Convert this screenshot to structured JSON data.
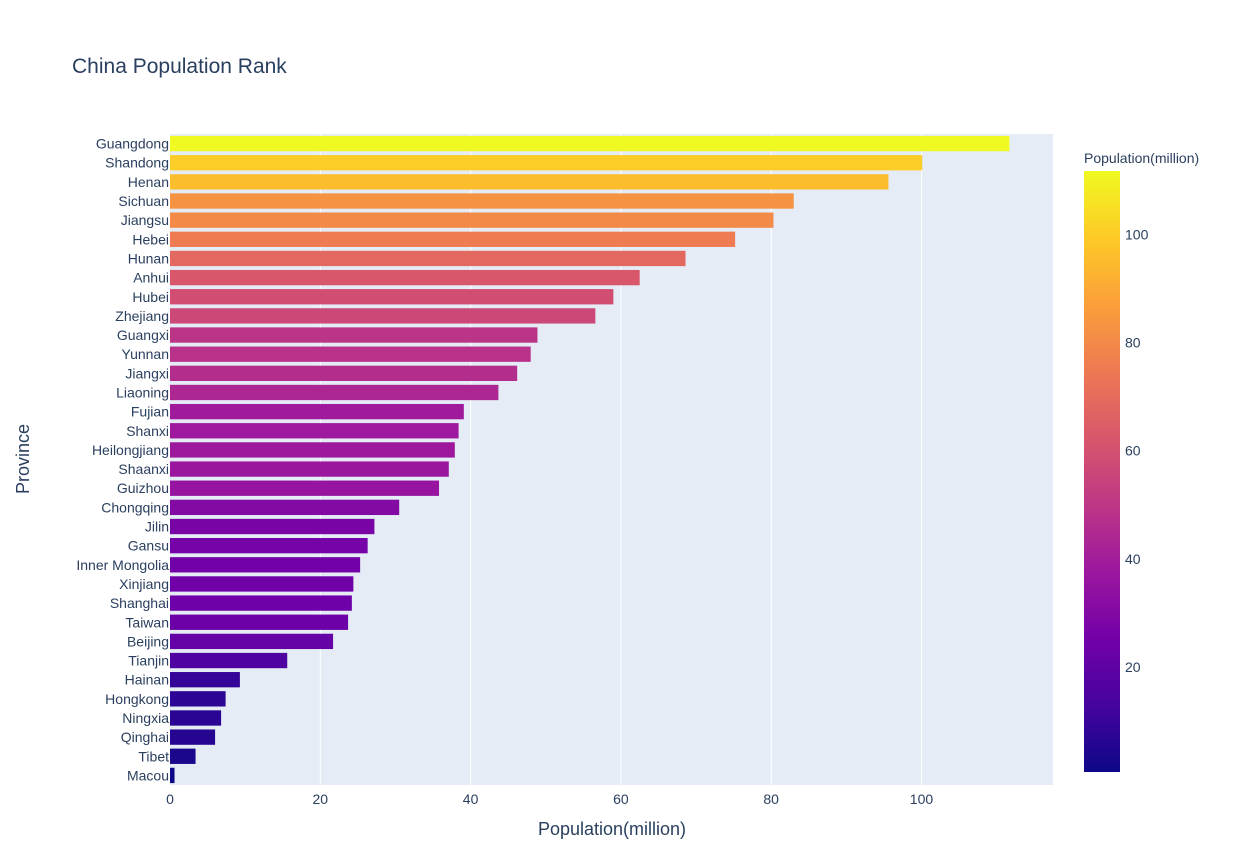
{
  "chart_data": {
    "type": "bar",
    "orientation": "horizontal",
    "title": "China Population Rank",
    "xlabel": "Population(million)",
    "ylabel": "Province",
    "xlim": [
      0,
      117.5
    ],
    "xticks": [
      0,
      20,
      40,
      60,
      80,
      100
    ],
    "grid": true,
    "categories": [
      "Guangdong",
      "Shandong",
      "Henan",
      "Sichuan",
      "Jiangsu",
      "Hebei",
      "Hunan",
      "Anhui",
      "Hubei",
      "Zhejiang",
      "Guangxi",
      "Yunnan",
      "Jiangxi",
      "Liaoning",
      "Fujian",
      "Shanxi",
      "Heilongjiang",
      "Shaanxi",
      "Guizhou",
      "Chongqing",
      "Jilin",
      "Gansu",
      "Inner Mongolia",
      "Xinjiang",
      "Shanghai",
      "Taiwan",
      "Beijing",
      "Tianjin",
      "Hainan",
      "Hongkong",
      "Ningxia",
      "Qinghai",
      "Tibet",
      "Macou"
    ],
    "values": [
      111.7,
      100.1,
      95.6,
      83.0,
      80.3,
      75.2,
      68.6,
      62.5,
      59.0,
      56.6,
      48.9,
      48.0,
      46.2,
      43.7,
      39.1,
      38.4,
      37.9,
      37.1,
      35.8,
      30.5,
      27.2,
      26.3,
      25.3,
      24.4,
      24.2,
      23.7,
      21.7,
      15.6,
      9.3,
      7.4,
      6.8,
      6.0,
      3.4,
      0.6
    ],
    "colorbar": {
      "title": "Population(million)",
      "range": [
        0.6,
        111.7
      ],
      "ticks": [
        20,
        40,
        60,
        80,
        100
      ],
      "colorscale": [
        "#0d0887",
        "#46039f",
        "#7201a8",
        "#9c179e",
        "#bd3786",
        "#d8576b",
        "#ed7953",
        "#fb9f3a",
        "#fdca26",
        "#f0f921"
      ]
    },
    "colors": {
      "plot_bg": "#e5ecf6",
      "grid": "#ffffff",
      "text": "#2a3f5f"
    }
  }
}
